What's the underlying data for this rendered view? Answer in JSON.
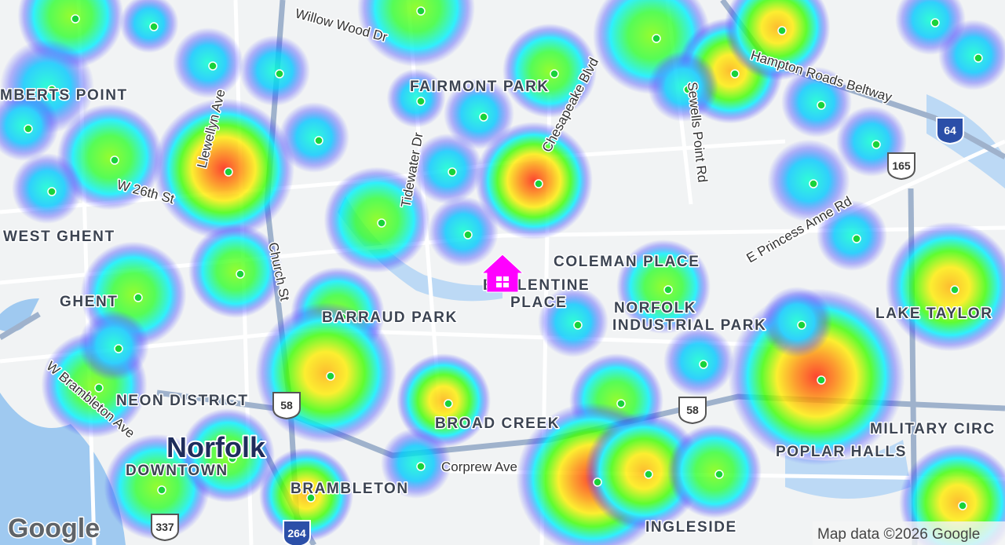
{
  "map": {
    "neighborhoods": [
      {
        "lines": [
          "MBERTS POINT"
        ]
      },
      {
        "lines": [
          "FAIRMONT PARK"
        ]
      },
      {
        "lines": [
          "WEST GHENT"
        ]
      },
      {
        "lines": [
          "GHENT"
        ]
      },
      {
        "lines": [
          "BARRAUD PARK"
        ]
      },
      {
        "lines": [
          "COLEMAN PLACE"
        ]
      },
      {
        "lines": [
          "BALLENTINE",
          "PLACE"
        ]
      },
      {
        "lines": [
          "NORFOLK",
          "INDUSTRIAL PARK"
        ]
      },
      {
        "lines": [
          "LAKE TAYLOR"
        ]
      },
      {
        "lines": [
          "NEON DISTRICT"
        ]
      },
      {
        "lines": [
          "DOWNTOWN"
        ]
      },
      {
        "lines": [
          "BROAD CREEK"
        ]
      },
      {
        "lines": [
          "MILITARY CIRC"
        ]
      },
      {
        "lines": [
          "POPLAR HALLS"
        ]
      },
      {
        "lines": [
          "BRAMBLETON"
        ]
      },
      {
        "lines": [
          "INGLESIDE"
        ]
      }
    ],
    "city": "Norfolk",
    "roads": [
      "Willow Wood Dr",
      "Tidewater Dr",
      "Chesapeake Blvd",
      "Sewells Point Rd",
      "Hampton Roads Beltway",
      "E Princess Anne Rd",
      "Llewellyn Ave",
      "W 26th St",
      "Church St",
      "W Brambleton Ave",
      "Corprew Ave"
    ],
    "shields": [
      "64",
      "165",
      "58",
      "58",
      "264",
      "337"
    ],
    "logo": "Google",
    "attribution": "Map data ©2026 Google"
  }
}
